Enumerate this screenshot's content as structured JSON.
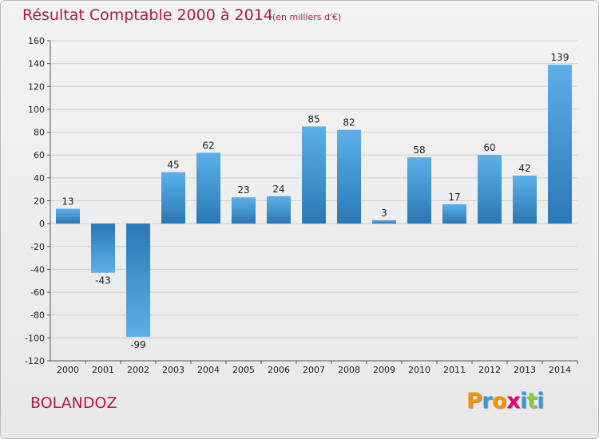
{
  "header": {
    "title": "Résultat Comptable 2000 à 2014",
    "subtitle": "(en milliers d'€)"
  },
  "footer": {
    "commune": "BOLANDOZ",
    "logo": {
      "text": "Proxiti",
      "letter_colors": [
        "#f29400",
        "#3a9ad9",
        "#f29400",
        "#e6007e",
        "#3a9ad9",
        "#8dc63f",
        "#3a9ad9"
      ]
    }
  },
  "chart_data": {
    "type": "bar",
    "categories": [
      "2000",
      "2001",
      "2002",
      "2003",
      "2004",
      "2005",
      "2006",
      "2007",
      "2008",
      "2009",
      "2010",
      "2011",
      "2012",
      "2013",
      "2014"
    ],
    "values": [
      13,
      -43,
      -99,
      45,
      62,
      23,
      24,
      85,
      82,
      3,
      58,
      17,
      60,
      42,
      139
    ],
    "ylim": [
      -120,
      160
    ],
    "yticks": [
      -120,
      -100,
      -80,
      -60,
      -40,
      -20,
      0,
      20,
      40,
      60,
      80,
      100,
      120,
      140,
      160
    ],
    "grid": "horizontal",
    "colors": {
      "bar_light": "#5aacE6",
      "bar_dark": "#2a79b8",
      "grid": "#cfcfcf",
      "axis": "#555555"
    }
  }
}
